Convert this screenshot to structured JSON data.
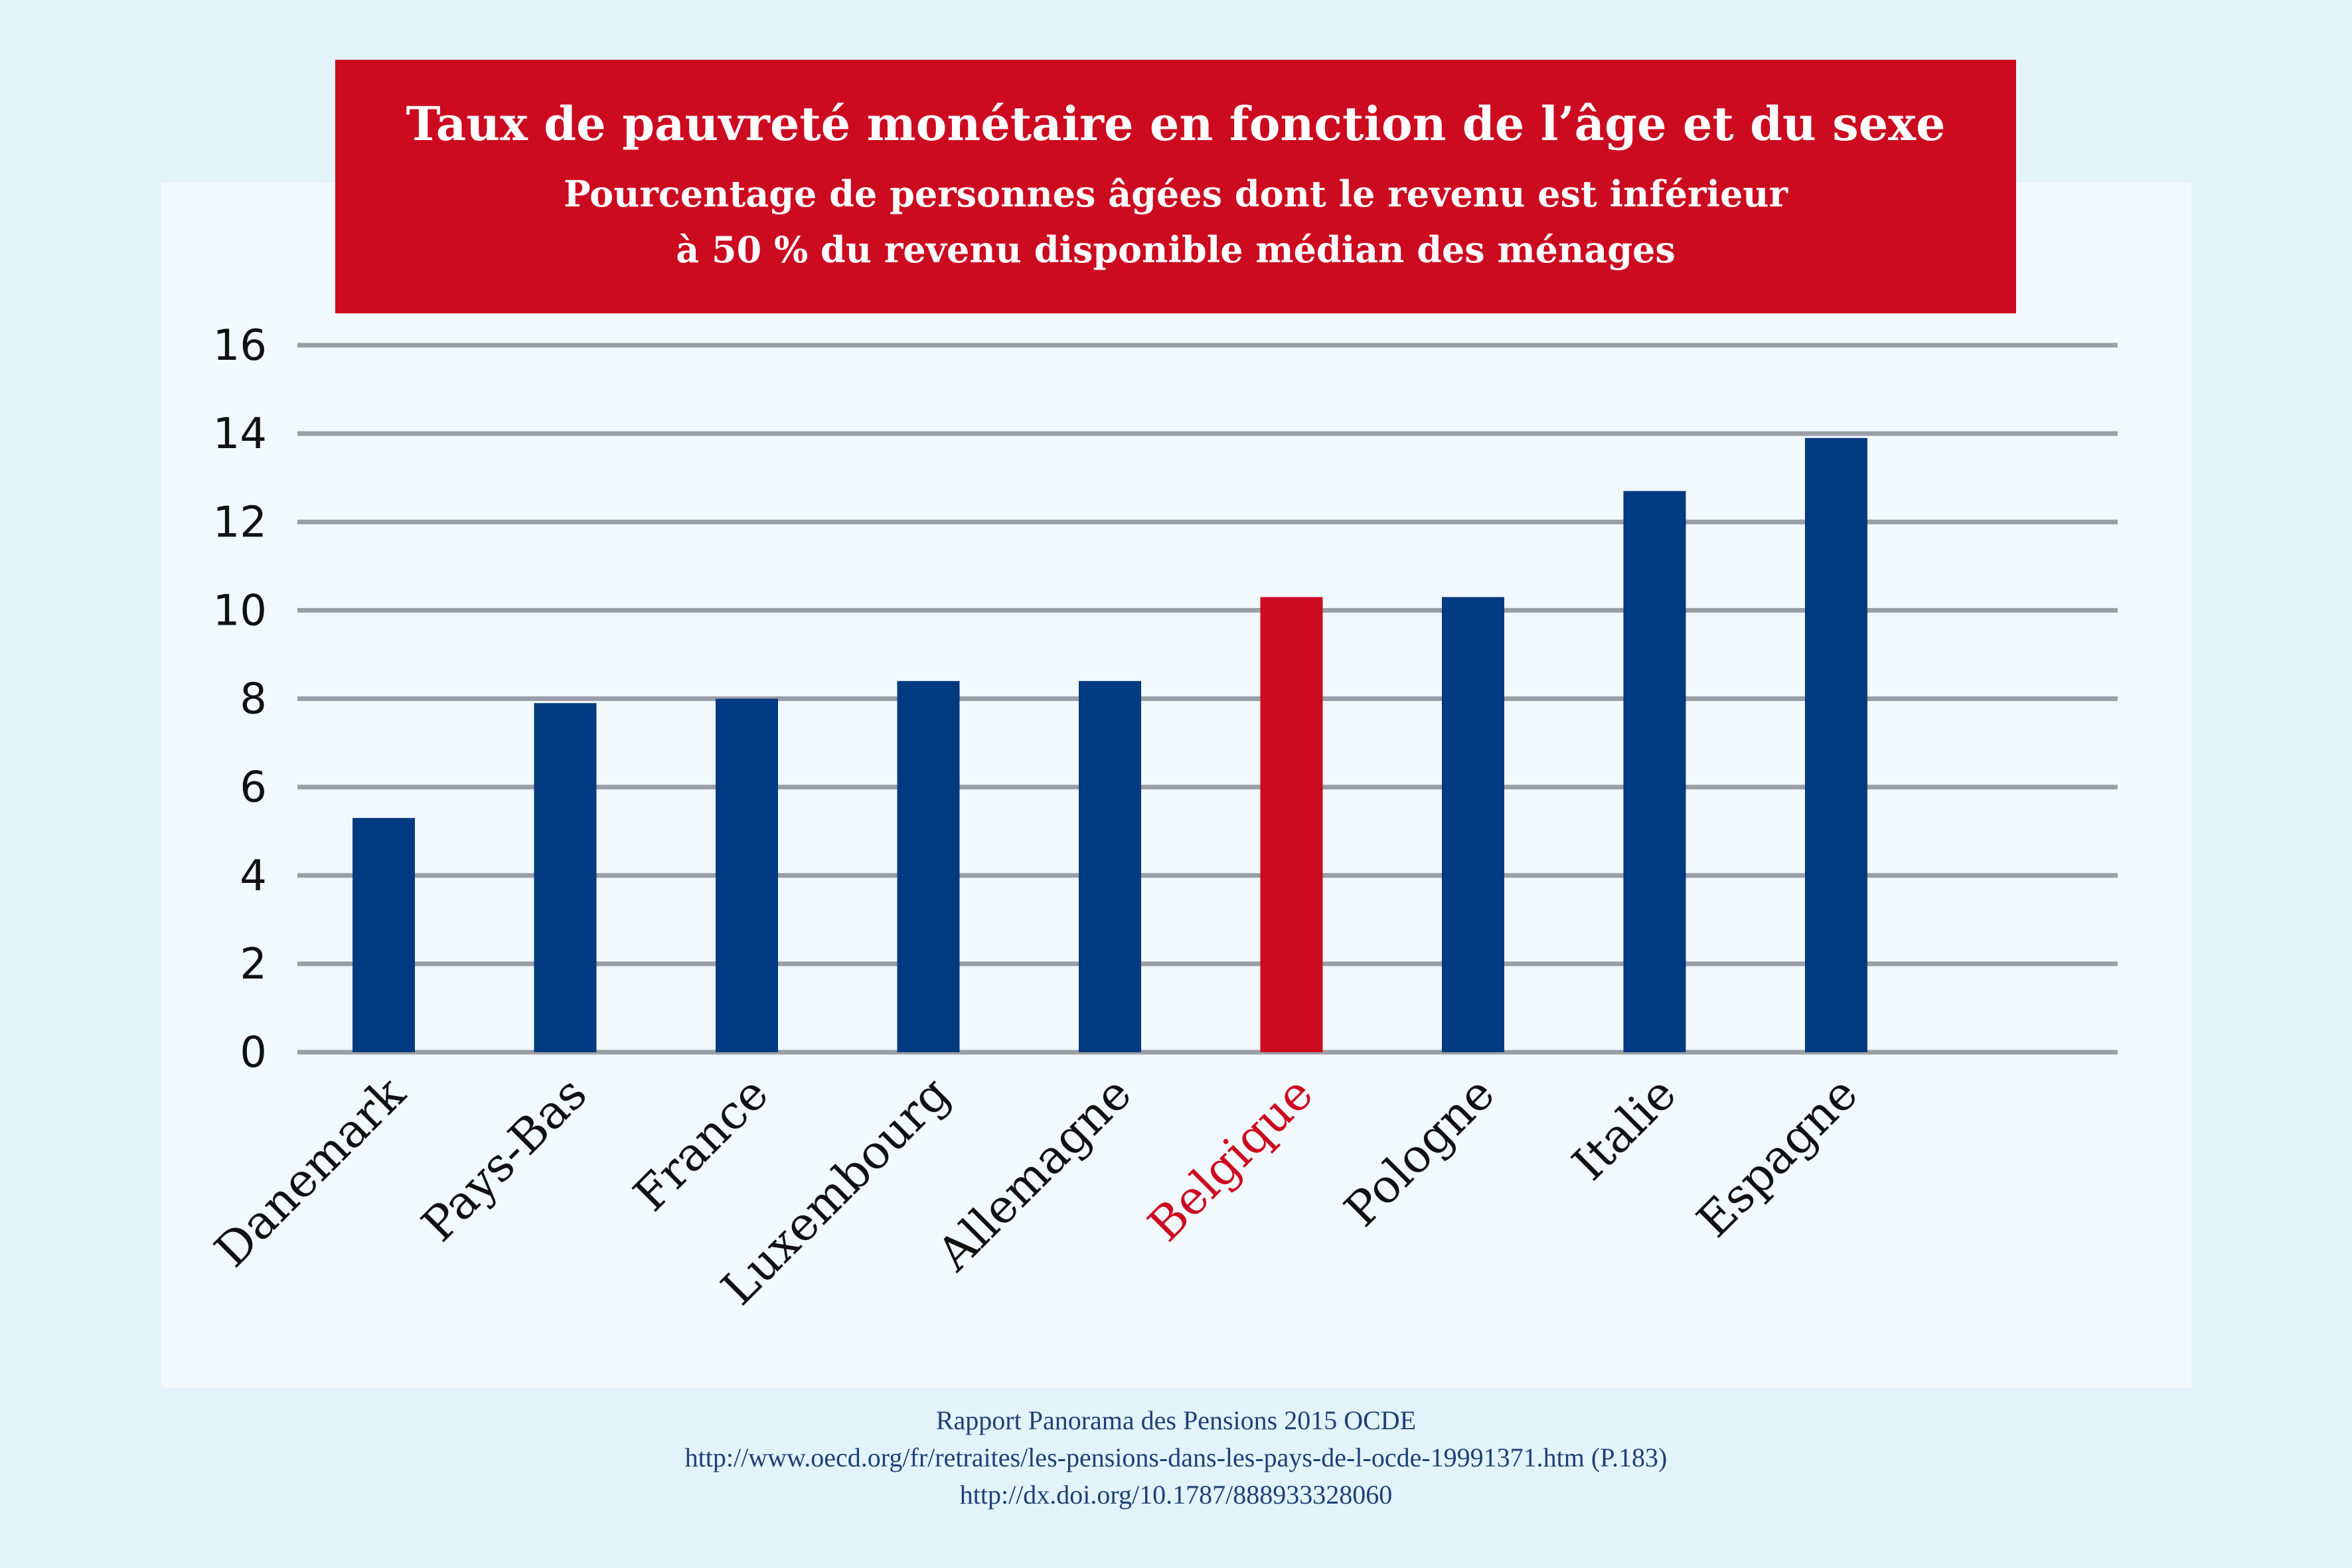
{
  "title": "Taux de pauvreté monétaire en fonction de l’âge et du sexe",
  "subtitle_line1": "Pourcentage de personnes âgées dont le revenu est inférieur",
  "subtitle_line2": "à 50 % du revenu disponible médian des ménages",
  "source": {
    "line1": "Rapport Panorama des Pensions 2015 OCDE",
    "line2": "http://www.oecd.org/fr/retraites/les-pensions-dans-les-pays-de-l-ocde-19991371.htm (P.183)",
    "line3": "http://dx.doi.org/10.1787/888933328060"
  },
  "colors": {
    "bar": "#003a80",
    "highlight": "#cc0a20",
    "grid": "#9a9ea6",
    "axis_text": "#111111"
  },
  "chart_data": {
    "type": "bar",
    "title": "Taux de pauvreté monétaire en fonction de l’âge et du sexe",
    "xlabel": "",
    "ylabel": "",
    "ylim": [
      0,
      16
    ],
    "yticks": [
      0,
      2,
      4,
      6,
      8,
      10,
      12,
      14,
      16
    ],
    "grid": true,
    "categories": [
      "Danemark",
      "Pays-Bas",
      "France",
      "Luxembourg",
      "Allemagne",
      "Belgique",
      "Pologne",
      "Italie",
      "Espagne"
    ],
    "values": [
      5.3,
      7.9,
      8.0,
      8.4,
      8.4,
      10.3,
      10.3,
      12.7,
      13.9
    ],
    "highlight": [
      "Belgique"
    ]
  }
}
